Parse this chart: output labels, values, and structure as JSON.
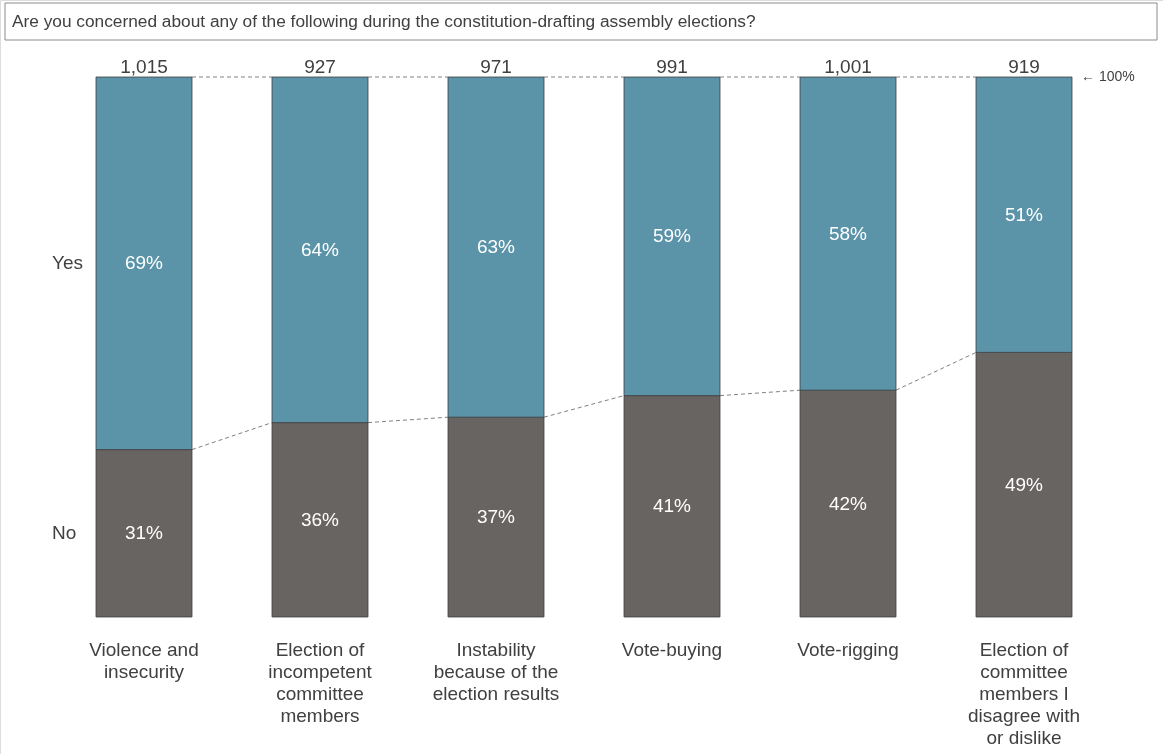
{
  "chart_data": {
    "type": "bar",
    "title": "Are you concerned about any of the following during the constitution-drafting assembly elections?",
    "categories": [
      "Violence and insecurity",
      "Election of incompetent committee members",
      "Instability because of the election results",
      "Vote-buying",
      "Vote-rigging",
      "Election of committee members I disagree with or dislike"
    ],
    "stacked": true,
    "legend": false,
    "series": [
      {
        "name": "No",
        "color": "#686462",
        "values": [
          31,
          36,
          37,
          41,
          42,
          49
        ],
        "value_labels": [
          "31%",
          "36%",
          "37%",
          "41%",
          "42%",
          "49%"
        ]
      },
      {
        "name": "Yes",
        "color": "#5b93a8",
        "values": [
          69,
          64,
          63,
          59,
          58,
          51
        ],
        "value_labels": [
          "69%",
          "64%",
          "63%",
          "59%",
          "58%",
          "51%"
        ]
      }
    ],
    "annotations": [
      {
        "text": "1,015",
        "x": "Violence and insecurity",
        "y": 100
      },
      {
        "text": "927",
        "x": "Election of incompetent committee members",
        "y": 100
      },
      {
        "text": "971",
        "x": "Instability because of the election results",
        "y": 100
      },
      {
        "text": "991",
        "x": "Vote-buying",
        "y": 100
      },
      {
        "text": "1,001",
        "x": "Vote-rigging",
        "y": 100
      },
      {
        "text": "919",
        "x": "Election of committee members I disagree with or dislike",
        "y": 100
      },
      "← 100%"
    ]
  }
}
